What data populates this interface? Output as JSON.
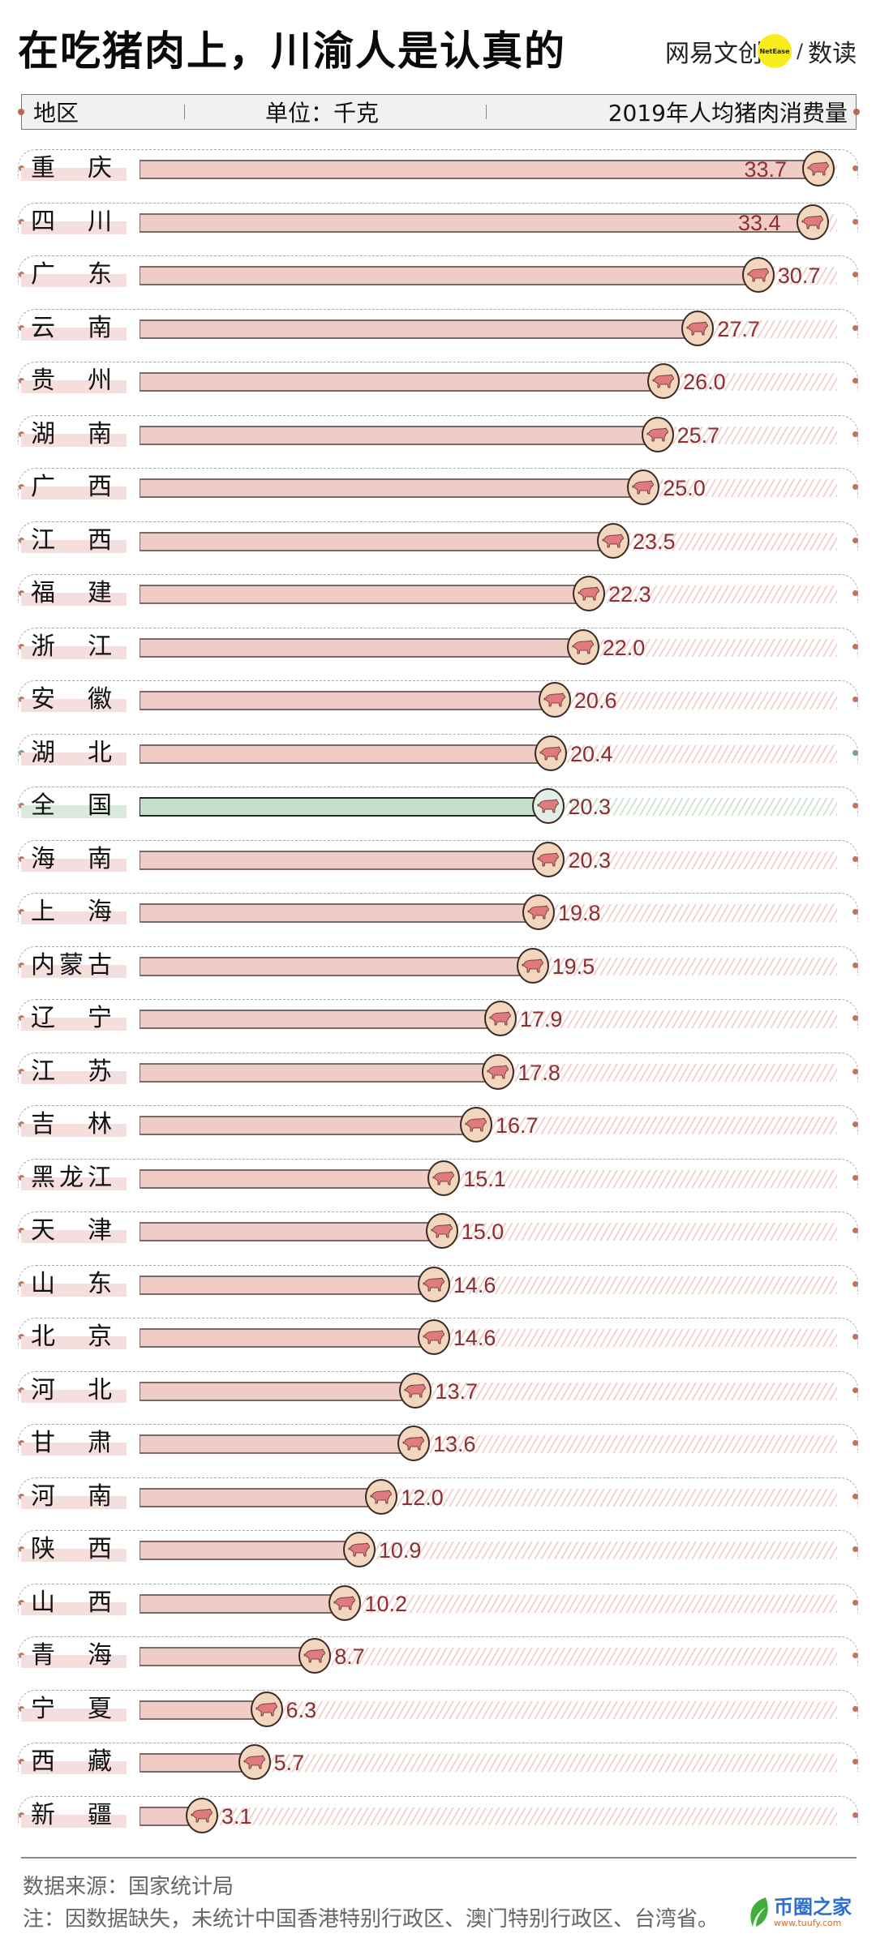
{
  "title": "在吃猪肉上，川渝人是认真的",
  "brand": {
    "name": "网易文创",
    "badge": "NetEase",
    "slash": "/",
    "sub": "数读"
  },
  "header": {
    "col_region": "地区",
    "col_unit": "单位：千克",
    "col_metric": "2019年人均猪肉消费量"
  },
  "colors": {
    "bar": "#efcdc6",
    "national_bar": "#c7dfc9",
    "value_text": "#8b2f32",
    "pig_circle": "#f3d6be",
    "dot": "#c07558"
  },
  "rows": [
    {
      "label": "重庆",
      "value": "33.7"
    },
    {
      "label": "四川",
      "value": "33.4"
    },
    {
      "label": "广东",
      "value": "30.7"
    },
    {
      "label": "云南",
      "value": "27.7"
    },
    {
      "label": "贵州",
      "value": "26.0"
    },
    {
      "label": "湖南",
      "value": "25.7"
    },
    {
      "label": "广西",
      "value": "25.0"
    },
    {
      "label": "江西",
      "value": "23.5"
    },
    {
      "label": "福建",
      "value": "22.3"
    },
    {
      "label": "浙江",
      "value": "22.0"
    },
    {
      "label": "安徽",
      "value": "20.6"
    },
    {
      "label": "湖北",
      "value": "20.4"
    },
    {
      "label": "全国",
      "value": "20.3"
    },
    {
      "label": "海南",
      "value": "20.3"
    },
    {
      "label": "上海",
      "value": "19.8"
    },
    {
      "label": "内蒙古",
      "value": "19.5"
    },
    {
      "label": "辽宁",
      "value": "17.9"
    },
    {
      "label": "江苏",
      "value": "17.8"
    },
    {
      "label": "吉林",
      "value": "16.7"
    },
    {
      "label": "黑龙江",
      "value": "15.1"
    },
    {
      "label": "天津",
      "value": "15.0"
    },
    {
      "label": "山东",
      "value": "14.6"
    },
    {
      "label": "北京",
      "value": "14.6"
    },
    {
      "label": "河北",
      "value": "13.7"
    },
    {
      "label": "甘肃",
      "value": "13.6"
    },
    {
      "label": "河南",
      "value": "12.0"
    },
    {
      "label": "陕西",
      "value": "10.9"
    },
    {
      "label": "山西",
      "value": "10.2"
    },
    {
      "label": "青海",
      "value": "8.7"
    },
    {
      "label": "宁夏",
      "value": "6.3"
    },
    {
      "label": "西藏",
      "value": "5.7"
    },
    {
      "label": "新疆",
      "value": "3.1"
    }
  ],
  "footer": {
    "source": "数据来源：国家统计局",
    "note": "注：因数据缺失，未统计中国香港特别行政区、澳门特别行政区、台湾省。"
  },
  "watermark": {
    "name": "币圈之家",
    "url": "www.tuufy.com"
  },
  "chart_data": {
    "type": "bar",
    "orientation": "horizontal",
    "title": "在吃猪肉上，川渝人是认真的",
    "subtitle": "2019年人均猪肉消费量",
    "unit": "千克",
    "xlabel": "2019年人均猪肉消费量（千克）",
    "ylabel": "地区",
    "categories": [
      "重庆",
      "四川",
      "广东",
      "云南",
      "贵州",
      "湖南",
      "广西",
      "江西",
      "福建",
      "浙江",
      "安徽",
      "湖北",
      "全国",
      "海南",
      "上海",
      "内蒙古",
      "辽宁",
      "江苏",
      "吉林",
      "黑龙江",
      "天津",
      "山东",
      "北京",
      "河北",
      "甘肃",
      "河南",
      "陕西",
      "山西",
      "青海",
      "宁夏",
      "西藏",
      "新疆"
    ],
    "values": [
      33.7,
      33.4,
      30.7,
      27.7,
      26.0,
      25.7,
      25.0,
      23.5,
      22.3,
      22.0,
      20.6,
      20.4,
      20.3,
      20.3,
      19.8,
      19.5,
      17.9,
      17.8,
      16.7,
      15.1,
      15.0,
      14.6,
      14.6,
      13.7,
      13.6,
      12.0,
      10.9,
      10.2,
      8.7,
      6.3,
      5.7,
      3.1
    ],
    "highlight": {
      "category": "全国",
      "color": "#c7dfc9"
    },
    "xlim": [
      0,
      34
    ],
    "grid": false,
    "legend": null,
    "source": "国家统计局"
  }
}
